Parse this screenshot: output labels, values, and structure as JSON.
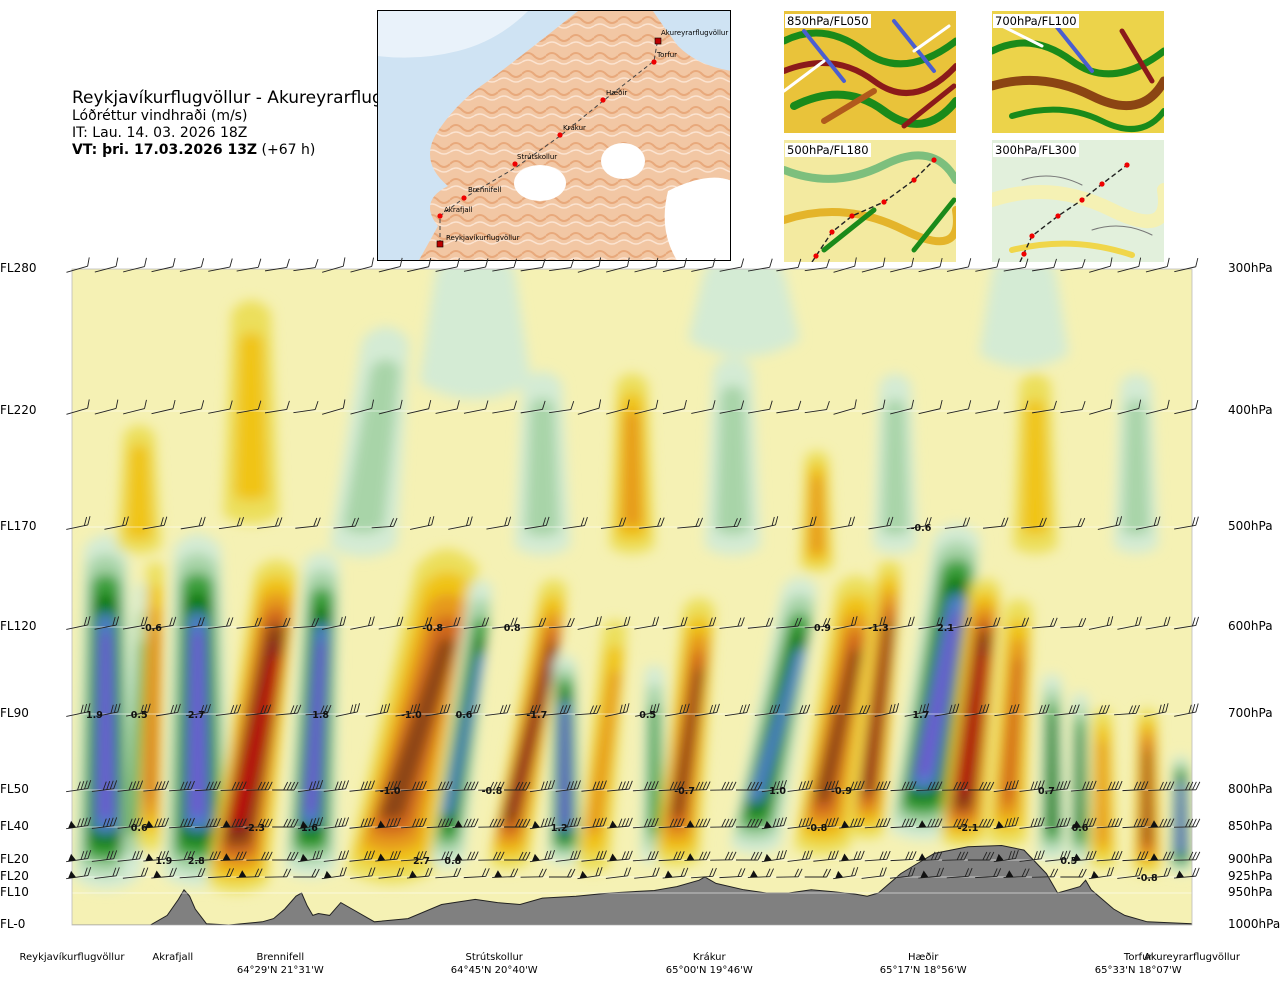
{
  "title": {
    "route": "Reykjavíkurflugvöllur - Akureyrarflugvöllur",
    "variable": "Lóðréttur vindhraði (m/s)",
    "issue_time": "IT: Lau. 14. 03. 2026 18Z",
    "valid_time": "VT: þri. 17.03.2026 13Z",
    "lead": "(+67 h)"
  },
  "map": {
    "points": [
      "Reykjavíkurflugvöllur",
      "Akrafjall",
      "Brennifell",
      "Strútskollur",
      "Krákur",
      "Hæðir",
      "Torfur",
      "Akureyrarflugvöllur"
    ]
  },
  "panels": [
    {
      "label": "850hPa/FL050"
    },
    {
      "label": "700hPa/FL100"
    },
    {
      "label": "500hPa/FL180"
    },
    {
      "label": "300hPa/FL300"
    }
  ],
  "colors": {
    "strong_down": "#c10000",
    "down_1": "#8c1a1a",
    "down_2": "#8b4513",
    "down_3": "#d2691e",
    "down_4": "#e69a1e",
    "down_5": "#f0c419",
    "down_6": "#ecdf5c",
    "weak": "#f5f1b4",
    "up_1": "#d4ebd4",
    "up_2": "#a8d4a8",
    "up_3": "#3da03d",
    "up_4": "#0a7a0a",
    "up_5": "#4d7fc9",
    "up_6": "#6a5acd",
    "terrain": "#808080"
  },
  "chart_data": {
    "type": "heatmap",
    "title": "Reykjavíkurflugvöllur - Akureyrarflugvöllur",
    "variable": "Lóðréttur vindhraði (m/s)",
    "levels_left": [
      "FL280",
      "FL220",
      "FL170",
      "FL120",
      "FL90",
      "FL50",
      "FL40",
      "FL20",
      "FL20",
      "FL10",
      "FL-0"
    ],
    "levels_right": [
      "300hPa",
      "400hPa",
      "500hPa",
      "600hPa",
      "700hPa",
      "800hPa",
      "850hPa",
      "900hPa",
      "925hPa",
      "950hPa",
      "1000hPa"
    ],
    "pressure_hpa": [
      300,
      400,
      500,
      600,
      700,
      800,
      850,
      900,
      925,
      950,
      1000
    ],
    "x_range": [
      0,
      1
    ],
    "waypoints": [
      {
        "name": "Reykjavíkurflugvöllur",
        "x": 0.0,
        "coord": ""
      },
      {
        "name": "Akrafjall",
        "x": 0.09,
        "coord": ""
      },
      {
        "name": "Brennifell",
        "x": 0.186,
        "coord": "64°29'N 21°31'W"
      },
      {
        "name": "Strútskollur",
        "x": 0.377,
        "coord": "64°45'N 20°40'W"
      },
      {
        "name": "Krákur",
        "x": 0.569,
        "coord": "65°00'N 19°46'W"
      },
      {
        "name": "Hæðir",
        "x": 0.76,
        "coord": "65°17'N 18°56'W"
      },
      {
        "name": "Torfur",
        "x": 0.952,
        "coord": "65°33'N 18°07'W"
      },
      {
        "name": "Akureyrarflugvöllur",
        "x": 1.0,
        "coord": ""
      }
    ],
    "value_labels": [
      {
        "x": 0.02,
        "p": 700,
        "v": "1.9"
      },
      {
        "x": 0.06,
        "p": 700,
        "v": "0.5"
      },
      {
        "x": 0.111,
        "p": 700,
        "v": "2.7"
      },
      {
        "x": 0.222,
        "p": 700,
        "v": "1.8"
      },
      {
        "x": 0.303,
        "p": 700,
        "v": "-1.0"
      },
      {
        "x": 0.35,
        "p": 700,
        "v": "0.6"
      },
      {
        "x": 0.415,
        "p": 700,
        "v": "-1.7"
      },
      {
        "x": 0.514,
        "p": 700,
        "v": "0.5"
      },
      {
        "x": 0.758,
        "p": 700,
        "v": "1.7"
      },
      {
        "x": 0.071,
        "p": 600,
        "v": "-0.6"
      },
      {
        "x": 0.322,
        "p": 600,
        "v": "-0.8"
      },
      {
        "x": 0.393,
        "p": 600,
        "v": "0.8"
      },
      {
        "x": 0.67,
        "p": 600,
        "v": "0.9"
      },
      {
        "x": 0.72,
        "p": 600,
        "v": "-1.3"
      },
      {
        "x": 0.78,
        "p": 600,
        "v": "2.1"
      },
      {
        "x": 0.758,
        "p": 500,
        "v": "-0.6"
      },
      {
        "x": 0.284,
        "p": 800,
        "v": "-1.0"
      },
      {
        "x": 0.375,
        "p": 800,
        "v": "-0.8"
      },
      {
        "x": 0.547,
        "p": 800,
        "v": "-0.7"
      },
      {
        "x": 0.63,
        "p": 800,
        "v": "1.0"
      },
      {
        "x": 0.687,
        "p": 800,
        "v": "-0.9"
      },
      {
        "x": 0.87,
        "p": 800,
        "v": "0.7"
      },
      {
        "x": 0.06,
        "p": 850,
        "v": "0.6"
      },
      {
        "x": 0.163,
        "p": 850,
        "v": "-2.3"
      },
      {
        "x": 0.212,
        "p": 850,
        "v": "1.6"
      },
      {
        "x": 0.435,
        "p": 850,
        "v": "1.2"
      },
      {
        "x": 0.665,
        "p": 850,
        "v": "-0.8"
      },
      {
        "x": 0.8,
        "p": 850,
        "v": "-2.1"
      },
      {
        "x": 0.9,
        "p": 850,
        "v": "0.6"
      },
      {
        "x": 0.082,
        "p": 900,
        "v": "1.9"
      },
      {
        "x": 0.111,
        "p": 900,
        "v": "2.8"
      },
      {
        "x": 0.312,
        "p": 900,
        "v": "2.7"
      },
      {
        "x": 0.34,
        "p": 900,
        "v": "0.8"
      },
      {
        "x": 0.89,
        "p": 900,
        "v": "0.5"
      },
      {
        "x": 0.96,
        "p": 925,
        "v": "-0.8"
      }
    ]
  }
}
